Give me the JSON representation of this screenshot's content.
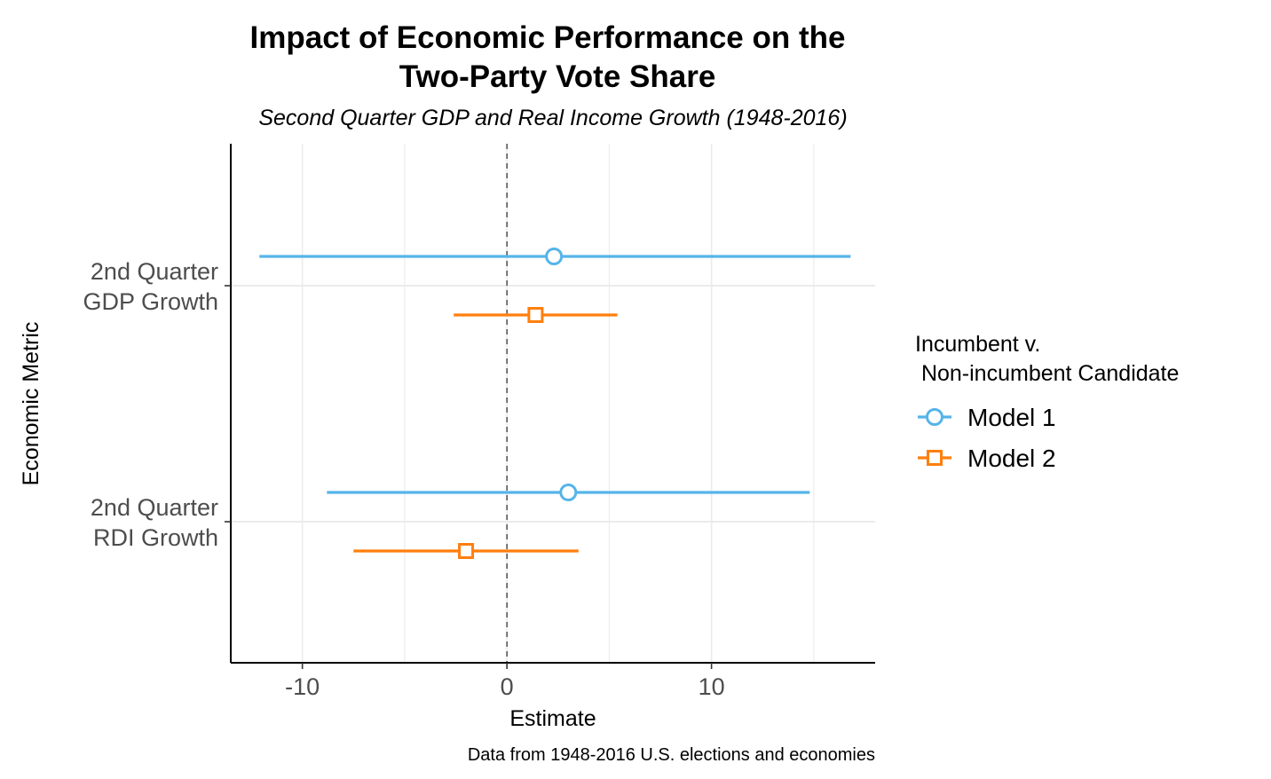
{
  "chart_data": {
    "type": "coefficient-plot",
    "title": [
      "Impact of Economic Performance on the",
      "Two-Party Vote Share"
    ],
    "subtitle": "Second Quarter GDP and Real Income Growth (1948-2016)",
    "xlabel": "Estimate",
    "ylabel": "Economic Metric",
    "caption": "Data from 1948-2016 U.S. elections and economies",
    "xlim": [
      -13.5,
      18
    ],
    "x_ticks": [
      -10,
      0,
      10
    ],
    "x_tick_labels": [
      "-10",
      "0",
      "10"
    ],
    "reference_line": 0,
    "grid": true,
    "categories": [
      {
        "lines": [
          "2nd Quarter",
          "GDP Growth"
        ]
      },
      {
        "lines": [
          "2nd Quarter",
          "RDI Growth"
        ]
      }
    ],
    "series": [
      {
        "name": "Model 1",
        "color": "#56b4e9",
        "marker": "circle",
        "points": [
          {
            "estimate": 2.3,
            "lower": -12.1,
            "upper": 16.8
          },
          {
            "estimate": 3.0,
            "lower": -8.8,
            "upper": 14.8
          }
        ]
      },
      {
        "name": "Model 2",
        "color": "#ff7f0e",
        "marker": "square",
        "points": [
          {
            "estimate": 1.4,
            "lower": -2.6,
            "upper": 5.4
          },
          {
            "estimate": -2.0,
            "lower": -7.5,
            "upper": 3.5
          }
        ]
      }
    ],
    "legend": {
      "title": [
        "Incumbent v.",
        " Non-incumbent Candidate"
      ],
      "position": "right"
    }
  }
}
